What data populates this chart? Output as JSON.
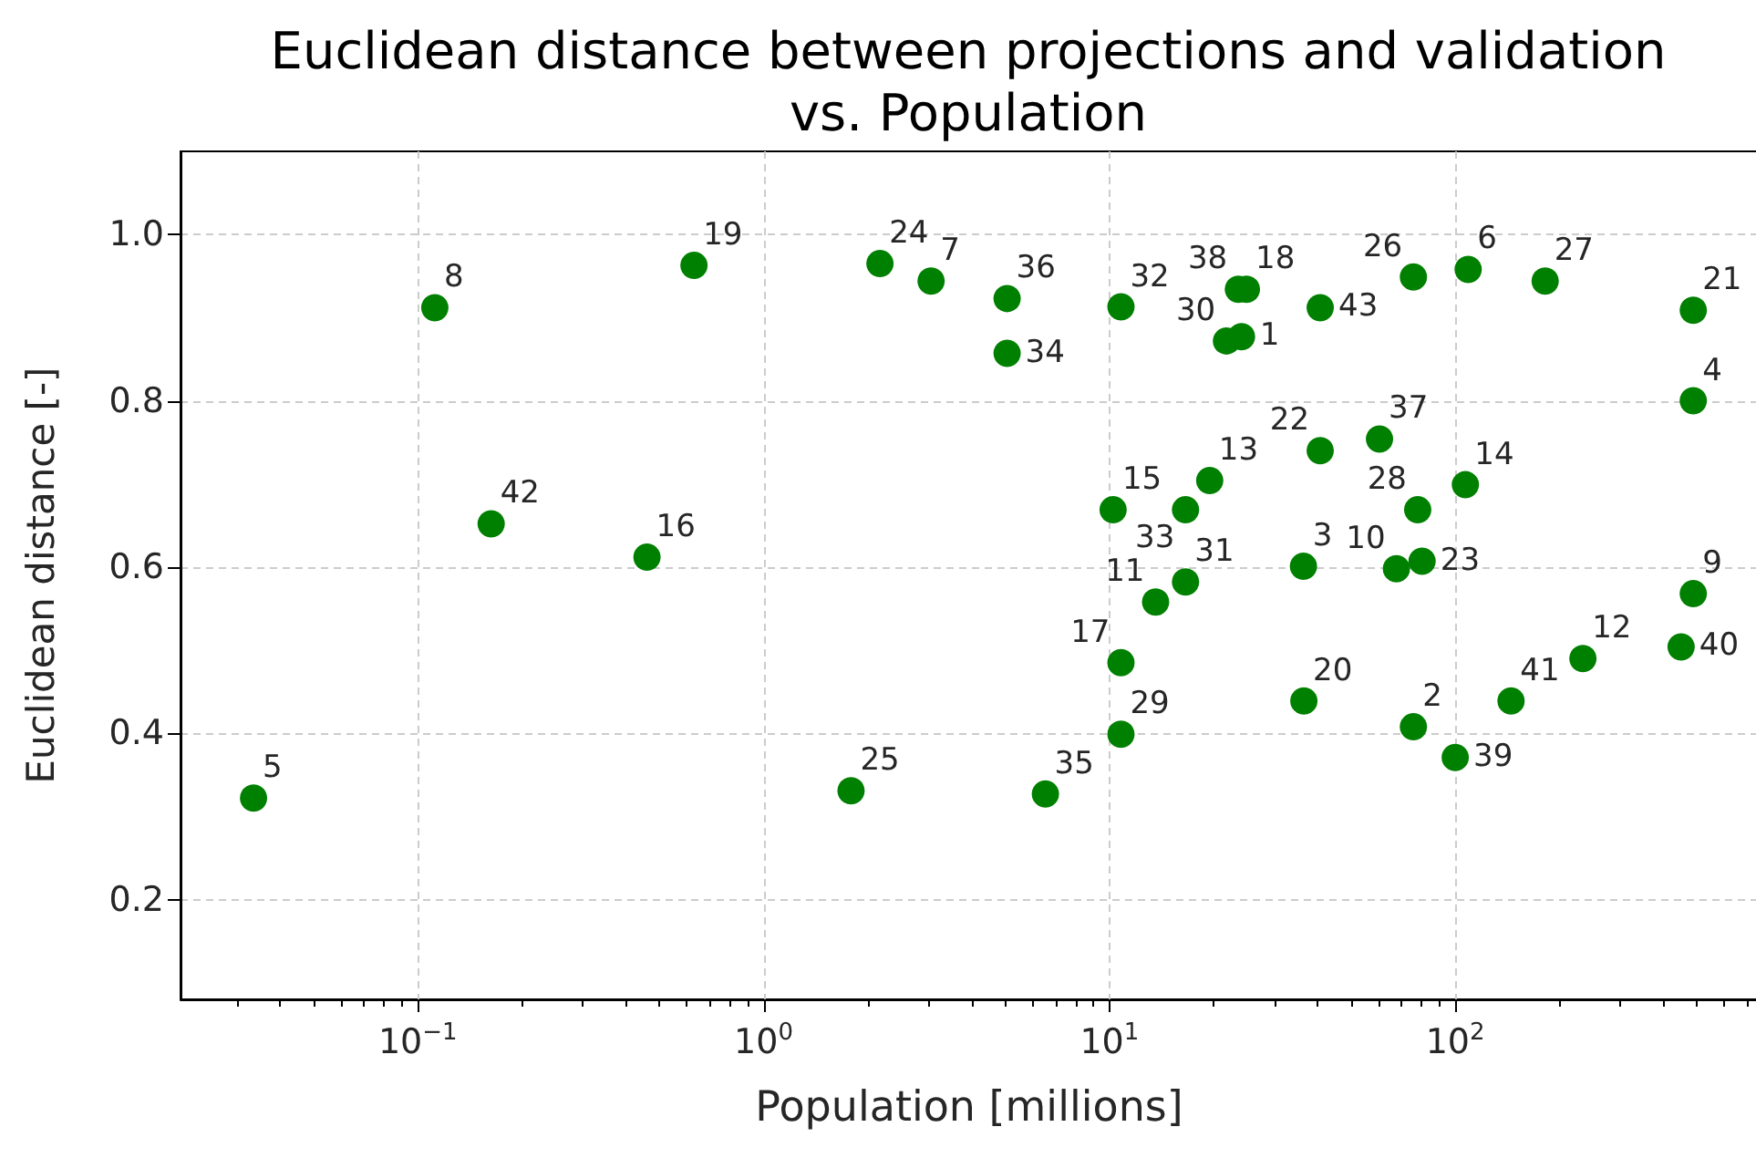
{
  "chart_data": {
    "type": "scatter",
    "title": "Euclidean distance between projections and validation\nvs. Population",
    "xlabel": "Population [millions]",
    "ylabel": "Euclidean distance [-]",
    "x": [
      24.1,
      75.7,
      36.4,
      488,
      0.0335,
      109,
      3.05,
      0.112,
      488,
      67.6,
      13.6,
      234,
      19.5,
      107,
      10.25,
      0.46,
      10.8,
      24.9,
      0.629,
      36.5,
      488,
      40.7,
      80.2,
      2.17,
      1.79,
      75.7,
      182,
      77.9,
      10.8,
      21.8,
      16.6,
      10.8,
      16.6,
      5.06,
      6.53,
      5.06,
      60.4,
      23.6,
      100,
      450,
      145,
      0.163,
      40.7
    ],
    "values": [
      0.877,
      0.408,
      0.601,
      0.8,
      0.322,
      0.958,
      0.944,
      0.912,
      0.568,
      0.598,
      0.558,
      0.49,
      0.704,
      0.699,
      0.669,
      0.612,
      0.485,
      0.934,
      0.963,
      0.439,
      0.909,
      0.74,
      0.607,
      0.965,
      0.331,
      0.949,
      0.944,
      0.669,
      0.399,
      0.872,
      0.582,
      0.913,
      0.669,
      0.857,
      0.327,
      0.923,
      0.754,
      0.934,
      0.371,
      0.504,
      0.439,
      0.652,
      0.912
    ],
    "color": "#008000",
    "marker": "circle",
    "log": "x",
    "grid": true,
    "xlim": [
      0.0206,
      750
    ],
    "ylim": [
      0.08,
      1.1
    ],
    "xticks": [
      {
        "value": 0.03,
        "label": null
      },
      {
        "value": 0.04,
        "label": null
      },
      {
        "value": 0.05,
        "label": null
      },
      {
        "value": 0.06,
        "label": null
      },
      {
        "value": 0.07,
        "label": null
      },
      {
        "value": 0.08,
        "label": null
      },
      {
        "value": 0.09,
        "label": null
      },
      {
        "value": 0.1,
        "label": "10$^{−1}$"
      },
      {
        "value": 0.2,
        "label": null
      },
      {
        "value": 0.3,
        "label": null
      },
      {
        "value": 0.4,
        "label": null
      },
      {
        "value": 0.5,
        "label": null
      },
      {
        "value": 0.6,
        "label": null
      },
      {
        "value": 0.7,
        "label": null
      },
      {
        "value": 0.8,
        "label": null
      },
      {
        "value": 0.9,
        "label": null
      },
      {
        "value": 1,
        "label": "10$^{0}$"
      },
      {
        "value": 2,
        "label": null
      },
      {
        "value": 3,
        "label": null
      },
      {
        "value": 4,
        "label": null
      },
      {
        "value": 5,
        "label": null
      },
      {
        "value": 6,
        "label": null
      },
      {
        "value": 7,
        "label": null
      },
      {
        "value": 8,
        "label": null
      },
      {
        "value": 9,
        "label": null
      },
      {
        "value": 10,
        "label": "10$^{1}$"
      },
      {
        "value": 20,
        "label": null
      },
      {
        "value": 30,
        "label": null
      },
      {
        "value": 40,
        "label": null
      },
      {
        "value": 50,
        "label": null
      },
      {
        "value": 60,
        "label": null
      },
      {
        "value": 70,
        "label": null
      },
      {
        "value": 80,
        "label": null
      },
      {
        "value": 90,
        "label": null
      },
      {
        "value": 100,
        "label": "10$^{2}$"
      },
      {
        "value": 200,
        "label": null
      },
      {
        "value": 300,
        "label": null
      },
      {
        "value": 400,
        "label": null
      },
      {
        "value": 500,
        "label": null
      },
      {
        "value": 600,
        "label": null
      },
      {
        "value": 700,
        "label": null
      }
    ],
    "yticks": [
      0.2,
      0.4,
      0.6,
      0.8,
      {
        "value": 1.0,
        "label": "1.0"
      }
    ],
    "annotations": [
      {
        "text": "1",
        "x": 24.1,
        "y": 0.877
      },
      {
        "text": "2",
        "x": 75.7,
        "y": 0.408
      },
      {
        "text": "3",
        "x": 36.4,
        "y": 0.601
      },
      {
        "text": "4",
        "x": 488,
        "y": 0.8
      },
      {
        "text": "5",
        "x": 0.0335,
        "y": 0.322
      },
      {
        "text": "6",
        "x": 109,
        "y": 0.958
      },
      {
        "text": "7",
        "x": 3.05,
        "y": 0.944
      },
      {
        "text": "8",
        "x": 0.112,
        "y": 0.912
      },
      {
        "text": "9",
        "x": 488,
        "y": 0.568
      },
      {
        "text": "10",
        "x": 67.6,
        "y": 0.598
      },
      {
        "text": "11",
        "x": 13.6,
        "y": 0.558
      },
      {
        "text": "12",
        "x": 234,
        "y": 0.49
      },
      {
        "text": "13",
        "x": 19.5,
        "y": 0.704
      },
      {
        "text": "14",
        "x": 107,
        "y": 0.699
      },
      {
        "text": "15",
        "x": 10.25,
        "y": 0.669
      },
      {
        "text": "16",
        "x": 0.46,
        "y": 0.612
      },
      {
        "text": "17",
        "x": 10.8,
        "y": 0.485
      },
      {
        "text": "18",
        "x": 24.9,
        "y": 0.934
      },
      {
        "text": "19",
        "x": 0.629,
        "y": 0.963
      },
      {
        "text": "20",
        "x": 36.5,
        "y": 0.439
      },
      {
        "text": "21",
        "x": 488,
        "y": 0.909
      },
      {
        "text": "22",
        "x": 40.7,
        "y": 0.74
      },
      {
        "text": "23",
        "x": 80.2,
        "y": 0.607
      },
      {
        "text": "24",
        "x": 2.17,
        "y": 0.965
      },
      {
        "text": "25",
        "x": 1.79,
        "y": 0.331
      },
      {
        "text": "26",
        "x": 75.7,
        "y": 0.949
      },
      {
        "text": "27",
        "x": 182,
        "y": 0.944
      },
      {
        "text": "28",
        "x": 77.9,
        "y": 0.669
      },
      {
        "text": "29",
        "x": 10.8,
        "y": 0.399
      },
      {
        "text": "30",
        "x": 21.8,
        "y": 0.872
      },
      {
        "text": "31",
        "x": 16.6,
        "y": 0.582
      },
      {
        "text": "32",
        "x": 10.8,
        "y": 0.913
      },
      {
        "text": "33",
        "x": 16.6,
        "y": 0.669
      },
      {
        "text": "34",
        "x": 5.06,
        "y": 0.857
      },
      {
        "text": "35",
        "x": 6.53,
        "y": 0.327
      },
      {
        "text": "36",
        "x": 5.06,
        "y": 0.923
      },
      {
        "text": "37",
        "x": 60.4,
        "y": 0.754
      },
      {
        "text": "38",
        "x": 23.6,
        "y": 0.934
      },
      {
        "text": "39",
        "x": 100,
        "y": 0.371
      },
      {
        "text": "40",
        "x": 450,
        "y": 0.504
      },
      {
        "text": "41",
        "x": 145,
        "y": 0.439
      },
      {
        "text": "42",
        "x": 0.163,
        "y": 0.652
      },
      {
        "text": "43",
        "x": 40.7,
        "y": 0.912
      }
    ]
  }
}
